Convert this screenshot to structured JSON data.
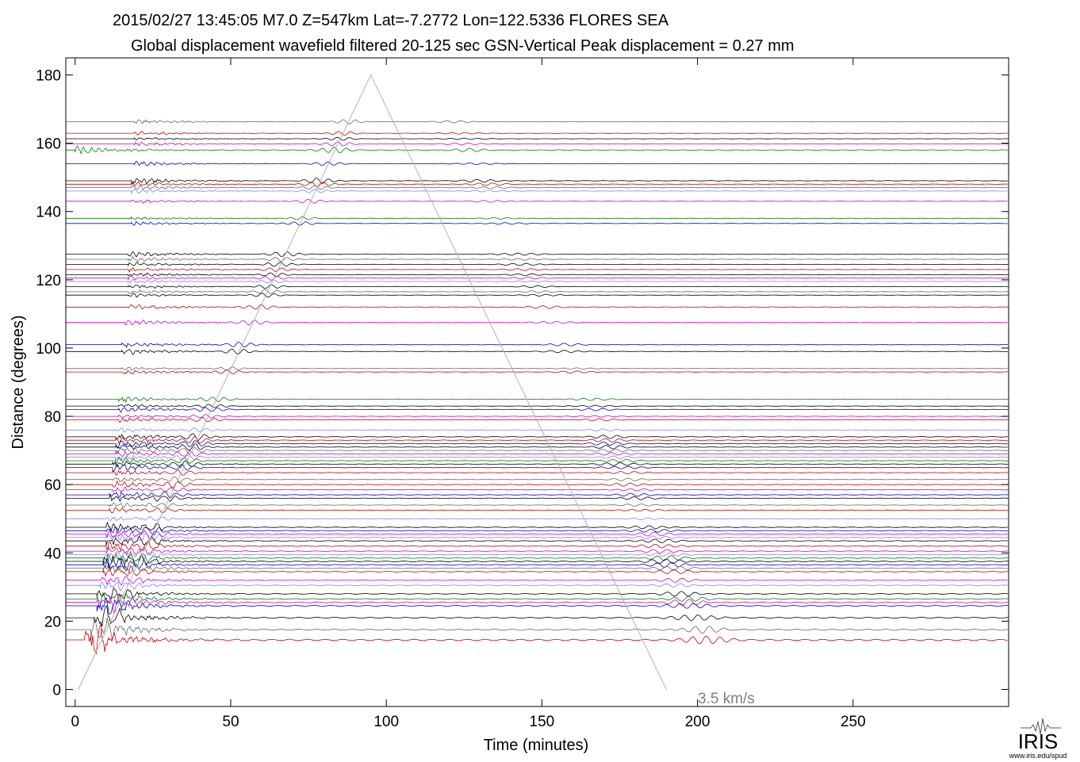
{
  "chart_data": {
    "type": "line",
    "title": "2015/02/27  13:45:05  M7.0  Z=547km  Lat=-7.2772 Lon=122.5336  FLORES SEA",
    "subtitle": "Global displacement wavefield     filtered 20-125 sec     GSN-Vertical     Peak displacement = 0.27 mm",
    "xlabel": "Time (minutes)",
    "ylabel": "Distance (degrees)",
    "xlim": [
      -3,
      300
    ],
    "ylim": [
      -5,
      185
    ],
    "xticks": [
      "0",
      "50",
      "100",
      "150",
      "200",
      "250"
    ],
    "yticks": [
      "0",
      "20",
      "40",
      "60",
      "80",
      "100",
      "120",
      "140",
      "160",
      "180"
    ],
    "xtick_values": [
      0,
      50,
      100,
      150,
      200,
      250
    ],
    "ytick_values": [
      0,
      20,
      40,
      60,
      80,
      100,
      120,
      140,
      160,
      180
    ],
    "grid": false,
    "reference_line": {
      "label": "3.5 km/s",
      "points": [
        [
          1,
          0
        ],
        [
          95,
          180
        ],
        [
          190,
          0
        ]
      ],
      "color": "#b3b3b3"
    },
    "colors": {
      "black": "#000000",
      "red": "#cc0000",
      "blue": "#0000cc",
      "green": "#008000",
      "magenta": "#cc00cc",
      "gray": "#666666",
      "lightblue": "#8080ff"
    },
    "series": [
      {
        "distance": 166.3,
        "color": "gray",
        "start_min": 19,
        "amplitude": 0.7
      },
      {
        "distance": 162.9,
        "color": "red",
        "start_min": 19,
        "amplitude": 0.6
      },
      {
        "distance": 161.3,
        "color": "black",
        "start_min": 19,
        "amplitude": 0.5
      },
      {
        "distance": 159.8,
        "color": "magenta",
        "start_min": 19,
        "amplitude": 0.7
      },
      {
        "distance": 158.0,
        "color": "green",
        "start_min": 0,
        "amplitude": 1.0
      },
      {
        "distance": 154.0,
        "color": "blue",
        "start_min": 19,
        "amplitude": 0.6
      },
      {
        "distance": 149.0,
        "color": "black",
        "start_min": 18,
        "amplitude": 0.9
      },
      {
        "distance": 148.0,
        "color": "red",
        "start_min": 18,
        "amplitude": 0.8
      },
      {
        "distance": 147.0,
        "color": "gray",
        "start_min": 18,
        "amplitude": 0.6
      },
      {
        "distance": 146.0,
        "color": "lightblue",
        "start_min": 18,
        "amplitude": 0.6
      },
      {
        "distance": 143.0,
        "color": "magenta",
        "start_min": 18,
        "amplitude": 0.6
      },
      {
        "distance": 138.0,
        "color": "green",
        "start_min": 18,
        "amplitude": 0.5
      },
      {
        "distance": 136.5,
        "color": "blue",
        "start_min": 18,
        "amplitude": 0.6
      },
      {
        "distance": 127.5,
        "color": "black",
        "start_min": 17,
        "amplitude": 0.8
      },
      {
        "distance": 126.0,
        "color": "gray",
        "start_min": 17,
        "amplitude": 0.7
      },
      {
        "distance": 124.5,
        "color": "black",
        "start_min": 17,
        "amplitude": 0.7
      },
      {
        "distance": 123.0,
        "color": "red",
        "start_min": 17,
        "amplitude": 0.6
      },
      {
        "distance": 121.5,
        "color": "black",
        "start_min": 17,
        "amplitude": 0.6
      },
      {
        "distance": 120.5,
        "color": "magenta",
        "start_min": 17,
        "amplitude": 0.6
      },
      {
        "distance": 119.5,
        "color": "lightblue",
        "start_min": 17,
        "amplitude": 0.5
      },
      {
        "distance": 118.0,
        "color": "black",
        "start_min": 17,
        "amplitude": 0.6
      },
      {
        "distance": 116.5,
        "color": "gray",
        "start_min": 17,
        "amplitude": 0.6
      },
      {
        "distance": 115.5,
        "color": "black",
        "start_min": 17,
        "amplitude": 0.6
      },
      {
        "distance": 112.0,
        "color": "red",
        "start_min": 17,
        "amplitude": 0.8
      },
      {
        "distance": 107.5,
        "color": "magenta",
        "start_min": 16,
        "amplitude": 0.8
      },
      {
        "distance": 101.0,
        "color": "blue",
        "start_min": 15,
        "amplitude": 0.8
      },
      {
        "distance": 99.0,
        "color": "black",
        "start_min": 15,
        "amplitude": 0.8
      },
      {
        "distance": 94.0,
        "color": "gray",
        "start_min": 15,
        "amplitude": 0.5
      },
      {
        "distance": 93.0,
        "color": "red",
        "start_min": 15,
        "amplitude": 0.6
      },
      {
        "distance": 85.0,
        "color": "green",
        "start_min": 14,
        "amplitude": 0.8
      },
      {
        "distance": 83.0,
        "color": "black",
        "start_min": 14,
        "amplitude": 0.6
      },
      {
        "distance": 82.0,
        "color": "blue",
        "start_min": 14,
        "amplitude": 0.7
      },
      {
        "distance": 80.0,
        "color": "magenta",
        "start_min": 14,
        "amplitude": 0.6
      },
      {
        "distance": 79.0,
        "color": "red",
        "start_min": 14,
        "amplitude": 0.7
      },
      {
        "distance": 76.0,
        "color": "lightblue",
        "start_min": 13,
        "amplitude": 0.6
      },
      {
        "distance": 74.0,
        "color": "black",
        "start_min": 13,
        "amplitude": 1.0
      },
      {
        "distance": 73.0,
        "color": "red",
        "start_min": 13,
        "amplitude": 1.0
      },
      {
        "distance": 72.0,
        "color": "blue",
        "start_min": 13,
        "amplitude": 1.0
      },
      {
        "distance": 71.0,
        "color": "black",
        "start_min": 13,
        "amplitude": 1.0
      },
      {
        "distance": 70.0,
        "color": "gray",
        "start_min": 13,
        "amplitude": 0.9
      },
      {
        "distance": 69.0,
        "color": "magenta",
        "start_min": 13,
        "amplitude": 0.9
      },
      {
        "distance": 68.0,
        "color": "lightblue",
        "start_min": 13,
        "amplitude": 0.8
      },
      {
        "distance": 67.0,
        "color": "green",
        "start_min": 13,
        "amplitude": 0.9
      },
      {
        "distance": 66.0,
        "color": "black",
        "start_min": 12,
        "amplitude": 1.0
      },
      {
        "distance": 65.0,
        "color": "blue",
        "start_min": 12,
        "amplitude": 0.9
      },
      {
        "distance": 63.5,
        "color": "red",
        "start_min": 12,
        "amplitude": 0.8
      },
      {
        "distance": 61.5,
        "color": "gray",
        "start_min": 12,
        "amplitude": 0.8
      },
      {
        "distance": 60.0,
        "color": "red",
        "start_min": 12,
        "amplitude": 1.0
      },
      {
        "distance": 58.5,
        "color": "magenta",
        "start_min": 12,
        "amplitude": 0.7
      },
      {
        "distance": 57.0,
        "color": "blue",
        "start_min": 11,
        "amplitude": 0.9
      },
      {
        "distance": 56.0,
        "color": "black",
        "start_min": 11,
        "amplitude": 0.9
      },
      {
        "distance": 54.0,
        "color": "gray",
        "start_min": 11,
        "amplitude": 0.7
      },
      {
        "distance": 52.5,
        "color": "red",
        "start_min": 11,
        "amplitude": 0.7
      },
      {
        "distance": 50.0,
        "color": "lightblue",
        "start_min": 10,
        "amplitude": 0.6
      },
      {
        "distance": 47.5,
        "color": "black",
        "start_min": 10,
        "amplitude": 1.0
      },
      {
        "distance": 46.5,
        "color": "blue",
        "start_min": 10,
        "amplitude": 1.0
      },
      {
        "distance": 45.5,
        "color": "magenta",
        "start_min": 10,
        "amplitude": 1.0
      },
      {
        "distance": 44.5,
        "color": "lightblue",
        "start_min": 10,
        "amplitude": 0.9
      },
      {
        "distance": 43.5,
        "color": "black",
        "start_min": 10,
        "amplitude": 1.0
      },
      {
        "distance": 42.0,
        "color": "red",
        "start_min": 10,
        "amplitude": 1.0
      },
      {
        "distance": 40.5,
        "color": "magenta",
        "start_min": 10,
        "amplitude": 0.8
      },
      {
        "distance": 39.5,
        "color": "lightblue",
        "start_min": 10,
        "amplitude": 0.8
      },
      {
        "distance": 38.5,
        "color": "green",
        "start_min": 9,
        "amplitude": 1.0
      },
      {
        "distance": 37.5,
        "color": "black",
        "start_min": 9,
        "amplitude": 1.0
      },
      {
        "distance": 36.5,
        "color": "blue",
        "start_min": 9,
        "amplitude": 1.0
      },
      {
        "distance": 35.5,
        "color": "gray",
        "start_min": 9,
        "amplitude": 0.9
      },
      {
        "distance": 34.5,
        "color": "red",
        "start_min": 9,
        "amplitude": 0.8
      },
      {
        "distance": 32.0,
        "color": "magenta",
        "start_min": 8,
        "amplitude": 0.7
      },
      {
        "distance": 30.5,
        "color": "lightblue",
        "start_min": 8,
        "amplitude": 0.6
      },
      {
        "distance": 28.0,
        "color": "black",
        "start_min": 7,
        "amplitude": 0.8
      },
      {
        "distance": 26.5,
        "color": "green",
        "start_min": 7,
        "amplitude": 0.8
      },
      {
        "distance": 25.5,
        "color": "magenta",
        "start_min": 7,
        "amplitude": 0.9
      },
      {
        "distance": 24.5,
        "color": "blue",
        "start_min": 7,
        "amplitude": 0.9
      },
      {
        "distance": 21.0,
        "color": "black",
        "start_min": 6,
        "amplitude": 1.0
      },
      {
        "distance": 17.5,
        "color": "gray",
        "start_min": 5,
        "amplitude": 1.0
      },
      {
        "distance": 14.5,
        "color": "red",
        "start_min": 3,
        "amplitude": 1.2
      }
    ]
  },
  "branding": {
    "logo_text": "IRIS",
    "url": "www.iris.edu/spud"
  }
}
